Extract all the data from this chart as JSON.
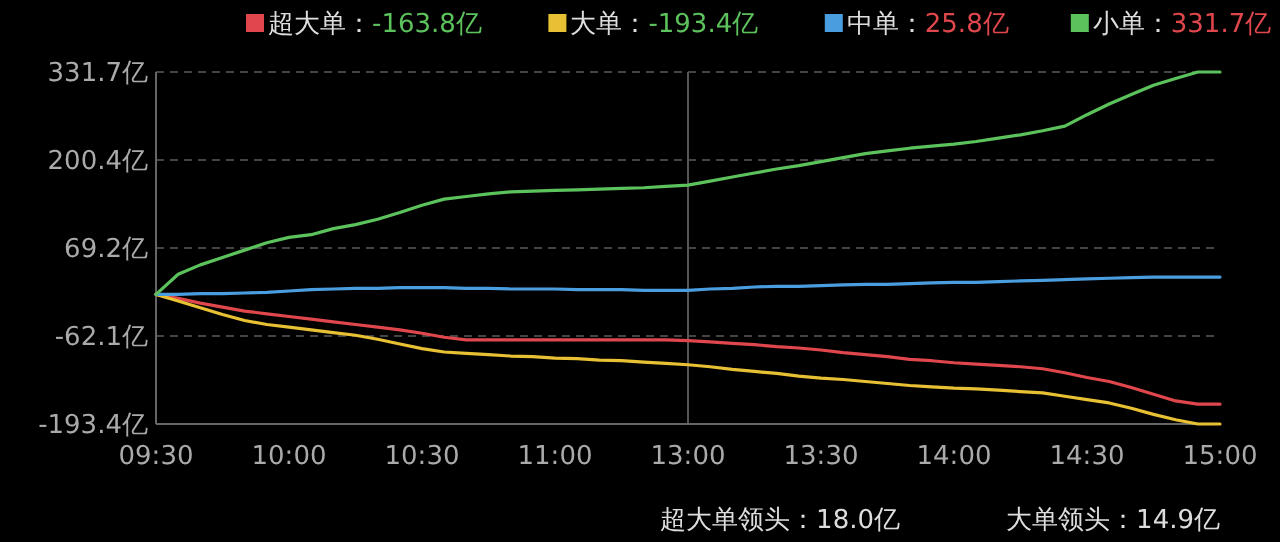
{
  "chart_data": {
    "type": "line",
    "ylim": [
      -193.4,
      331.7
    ],
    "categories": [
      "09:30",
      null,
      null,
      null,
      null,
      null,
      "10:00",
      null,
      null,
      null,
      null,
      null,
      "10:30",
      null,
      null,
      null,
      null,
      null,
      "11:00",
      null,
      null,
      null,
      null,
      null,
      "13:00",
      null,
      null,
      null,
      null,
      null,
      "13:30",
      null,
      null,
      null,
      null,
      null,
      "14:00",
      null,
      null,
      null,
      null,
      null,
      "14:30",
      null,
      null,
      null,
      null,
      null,
      "15:00"
    ],
    "yticks": [
      {
        "value": -193.4,
        "label": "-193.4亿"
      },
      {
        "value": -62.1,
        "label": "-62.1亿"
      },
      {
        "value": 69.2,
        "label": "69.2亿"
      },
      {
        "value": 200.4,
        "label": "200.4亿"
      },
      {
        "value": 331.7,
        "label": "331.7亿"
      }
    ],
    "grid": "y",
    "legend": "top right",
    "marker": "none",
    "line_style": "solid",
    "ref_lines": [
      {
        "axis": "x",
        "value": "13:00",
        "label": null,
        "color": "#555555",
        "line_style": "solid"
      }
    ],
    "series": [
      {
        "name": "超大单：-163.8亿",
        "color": "#e0474c",
        "values": [
          0,
          -6,
          -13,
          -19,
          -25,
          -29,
          -33,
          -37,
          -41,
          -45,
          -49,
          -53,
          -58,
          -64,
          -68,
          -68,
          -68,
          -68,
          -68,
          -68,
          -68,
          -68,
          -68,
          -68,
          -69,
          -71,
          -73,
          -75,
          -78,
          -80,
          -83,
          -87,
          -90,
          -93,
          -97,
          -99,
          -102,
          -104,
          -106,
          -108,
          -111,
          -117,
          -124,
          -130,
          -139,
          -149,
          -159,
          -163.8,
          -163.8
        ]
      },
      {
        "name": "大单：-193.4亿",
        "color": "#e8c033",
        "values": [
          0,
          -10,
          -20,
          -30,
          -39,
          -45,
          -49,
          -53,
          -57,
          -61,
          -67,
          -74,
          -81,
          -86,
          -88,
          -90,
          -92,
          -93,
          -95,
          -96,
          -98,
          -99,
          -101,
          -103,
          -105,
          -108,
          -112,
          -115,
          -118,
          -122,
          -125,
          -127,
          -130,
          -133,
          -136,
          -138,
          -140,
          -141,
          -143,
          -145,
          -147,
          -152,
          -157,
          -162,
          -170,
          -179,
          -187,
          -193.4,
          -193.4
        ]
      },
      {
        "name": "中单：25.8亿",
        "color": "#4a9ee0",
        "values": [
          0,
          0,
          1,
          1,
          2,
          3,
          5,
          7,
          8,
          9,
          9,
          10,
          10,
          10,
          9,
          9,
          8,
          8,
          8,
          7,
          7,
          7,
          6,
          6,
          6,
          8,
          9,
          11,
          12,
          12,
          13,
          14,
          15,
          15,
          16,
          17,
          18,
          18,
          19,
          20,
          21,
          22,
          23,
          24,
          25,
          25.8,
          25.8,
          25.8,
          25.8
        ]
      },
      {
        "name": "小单：331.7亿",
        "color": "#5cc25c",
        "values": [
          0,
          30,
          44,
          55,
          66,
          77,
          85,
          89,
          98,
          104,
          112,
          122,
          133,
          142,
          146,
          150,
          153,
          154,
          155,
          156,
          157,
          158,
          159,
          161,
          163,
          169,
          175,
          181,
          187,
          192,
          198,
          204,
          210,
          214,
          218,
          221,
          224,
          228,
          233,
          238,
          244,
          251,
          268,
          284,
          298,
          312,
          322,
          331.7,
          331.7
        ]
      }
    ],
    "annotations": [
      "超大单领头：18.0亿",
      "大单领头：14.9亿"
    ]
  }
}
